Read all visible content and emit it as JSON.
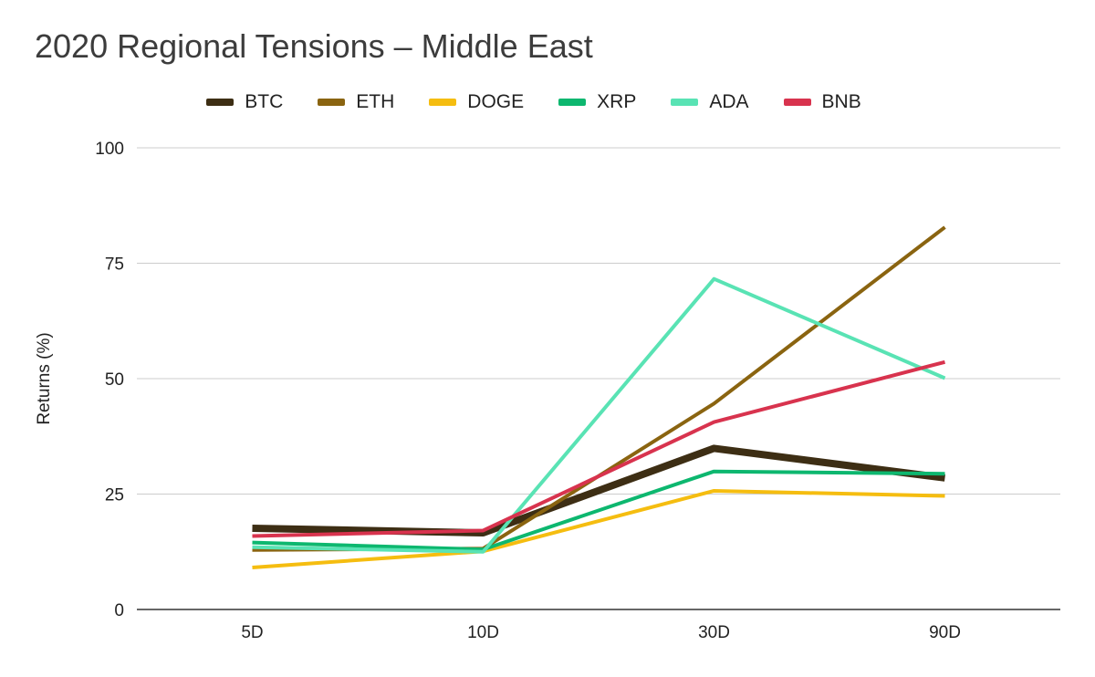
{
  "chart_data": {
    "type": "line",
    "title": "2020 Regional Tensions – Middle East",
    "xlabel": "",
    "ylabel": "Returns (%)",
    "categories": [
      "5D",
      "10D",
      "30D",
      "90D"
    ],
    "ylim": [
      0,
      100
    ],
    "yticks": [
      0,
      25,
      50,
      75,
      100
    ],
    "grid": true,
    "legend_position": "top",
    "series": [
      {
        "name": "BTC",
        "color": "#3d2e14",
        "width": 8,
        "values": [
          17.6,
          16.6,
          34.9,
          28.5
        ]
      },
      {
        "name": "ETH",
        "color": "#8a6410",
        "width": 4,
        "values": [
          12.9,
          13.2,
          44.6,
          82.8
        ]
      },
      {
        "name": "DOGE",
        "color": "#f5bd10",
        "width": 4,
        "values": [
          9.1,
          12.6,
          25.7,
          24.6
        ]
      },
      {
        "name": "XRP",
        "color": "#0db76f",
        "width": 4,
        "values": [
          14.5,
          13.0,
          29.9,
          29.4
        ]
      },
      {
        "name": "ADA",
        "color": "#59e3b4",
        "width": 4,
        "values": [
          13.5,
          12.5,
          71.6,
          50.1
        ]
      },
      {
        "name": "BNB",
        "color": "#d8334e",
        "width": 4,
        "values": [
          15.9,
          17.1,
          40.6,
          53.6
        ]
      }
    ]
  }
}
